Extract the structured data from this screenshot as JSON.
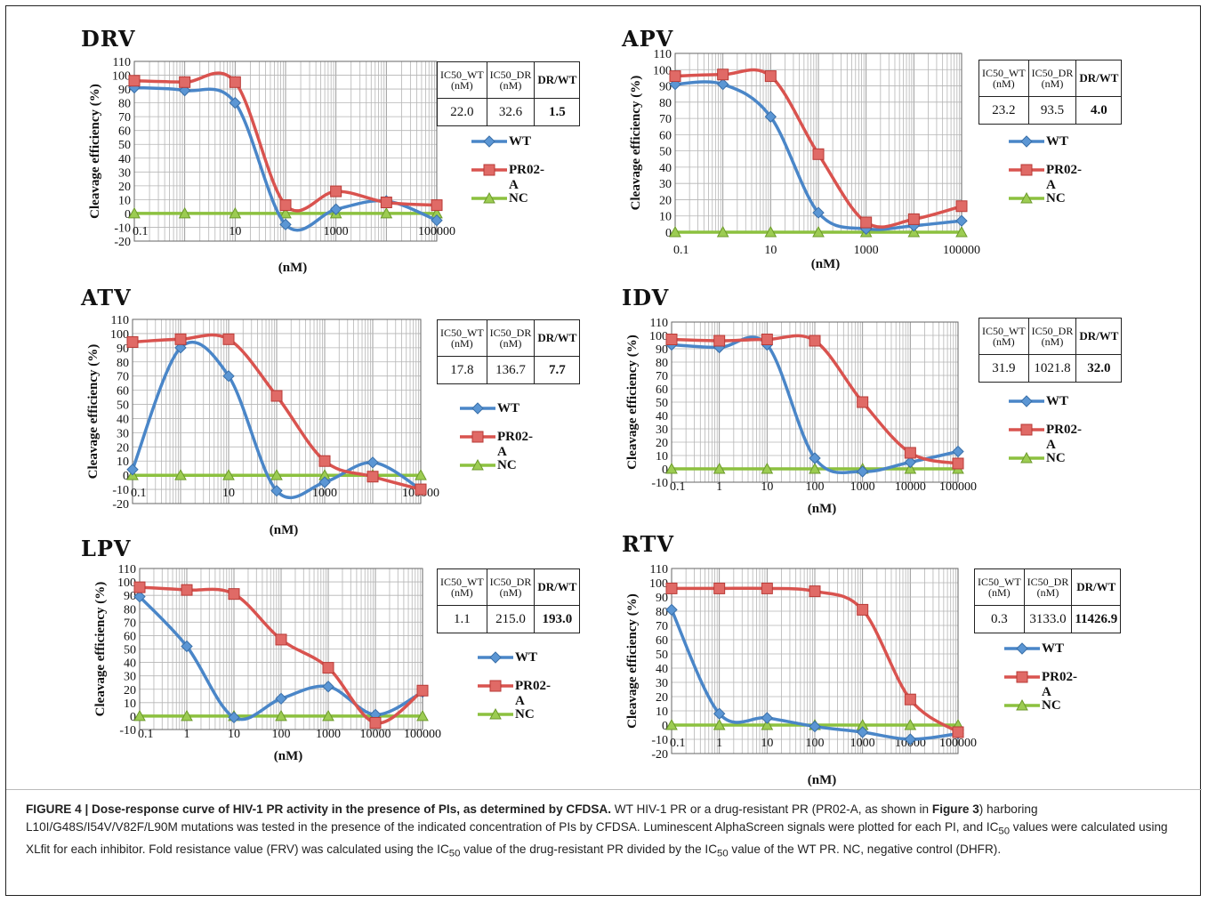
{
  "colors": {
    "wt": "#4a86c8",
    "dr": "#d9534f",
    "nc": "#8cc13f",
    "grid": "#b5b5b5",
    "axis": "#666666"
  },
  "legend": [
    "WT",
    "PR02-A",
    "NC"
  ],
  "table_headers": {
    "wt": [
      "IC50_WT",
      "(nM)"
    ],
    "dr": [
      "IC50_DR",
      "(nM)"
    ],
    "ratio": "DR/WT"
  },
  "chart_data": [
    {
      "type": "line",
      "title": "DRV",
      "xlabel": "(nM)",
      "ylabel": "Cleavage efficiency (%)",
      "x_scale": "log",
      "xlim": [
        0.1,
        100000
      ],
      "ylim": [
        -20,
        110
      ],
      "x_ticks": [
        "0.1",
        "10",
        "1000",
        "100000"
      ],
      "y_ticks": [
        "110",
        "100",
        "90",
        "80",
        "70",
        "60",
        "50",
        "40",
        "30",
        "20",
        "10",
        "0",
        "-10",
        "-20"
      ],
      "series": [
        {
          "name": "WT",
          "x": [
            0.1,
            1,
            10,
            100,
            1000,
            10000,
            100000
          ],
          "y": [
            91,
            89,
            80,
            -8,
            3,
            9,
            -5
          ]
        },
        {
          "name": "PR02-A",
          "x": [
            0.1,
            1,
            10,
            100,
            1000,
            10000,
            100000
          ],
          "y": [
            96,
            95,
            95,
            6,
            16,
            8,
            6
          ]
        },
        {
          "name": "NC",
          "x": [
            0.1,
            1,
            10,
            100,
            1000,
            10000,
            100000
          ],
          "y": [
            0,
            0,
            0,
            0,
            0,
            0,
            0
          ]
        }
      ],
      "ic50": {
        "wt": "22.0",
        "dr": "32.6",
        "ratio": "1.5"
      }
    },
    {
      "type": "line",
      "title": "APV",
      "xlabel": "(nM)",
      "ylabel": "Cleavage efficiency (%)",
      "x_scale": "log",
      "xlim": [
        0.1,
        100000
      ],
      "ylim": [
        0,
        110
      ],
      "x_ticks": [
        "0.1",
        "10",
        "1000",
        "100000"
      ],
      "y_ticks": [
        "110",
        "100",
        "90",
        "80",
        "70",
        "60",
        "50",
        "40",
        "30",
        "20",
        "10",
        "0"
      ],
      "series": [
        {
          "name": "WT",
          "x": [
            0.1,
            1,
            10,
            100,
            1000,
            10000,
            100000
          ],
          "y": [
            91,
            91,
            71,
            12,
            2,
            4,
            7
          ]
        },
        {
          "name": "PR02-A",
          "x": [
            0.1,
            1,
            10,
            100,
            1000,
            10000,
            100000
          ],
          "y": [
            96,
            97,
            96,
            48,
            6,
            8,
            16
          ]
        },
        {
          "name": "NC",
          "x": [
            0.1,
            1,
            10,
            100,
            1000,
            10000,
            100000
          ],
          "y": [
            0,
            0,
            0,
            0,
            0,
            0,
            0
          ]
        }
      ],
      "ic50": {
        "wt": "23.2",
        "dr": "93.5",
        "ratio": "4.0"
      }
    },
    {
      "type": "line",
      "title": "ATV",
      "xlabel": "(nM)",
      "ylabel": "Cleavage efficiency (%)",
      "x_scale": "log",
      "xlim": [
        0.1,
        100000
      ],
      "ylim": [
        -20,
        110
      ],
      "x_ticks": [
        "0.1",
        "10",
        "1000",
        "100000"
      ],
      "y_ticks": [
        "110",
        "100",
        "90",
        "80",
        "70",
        "60",
        "50",
        "40",
        "30",
        "20",
        "10",
        "0",
        "-10",
        "-20"
      ],
      "series": [
        {
          "name": "WT",
          "x": [
            0.1,
            1,
            10,
            100,
            1000,
            10000,
            100000
          ],
          "y": [
            4,
            90,
            70,
            -11,
            -5,
            9,
            -10
          ]
        },
        {
          "name": "PR02-A",
          "x": [
            0.1,
            1,
            10,
            100,
            1000,
            10000,
            100000
          ],
          "y": [
            94,
            96,
            96,
            56,
            10,
            -1,
            -10
          ]
        },
        {
          "name": "NC",
          "x": [
            0.1,
            1,
            10,
            100,
            1000,
            10000,
            100000
          ],
          "y": [
            0,
            0,
            0,
            0,
            0,
            0,
            0
          ]
        }
      ],
      "ic50": {
        "wt": "17.8",
        "dr": "136.7",
        "ratio": "7.7"
      }
    },
    {
      "type": "line",
      "title": "IDV",
      "xlabel": "(nM)",
      "ylabel": "Cleavage efficiency (%)",
      "x_scale": "log",
      "xlim": [
        0.1,
        100000
      ],
      "ylim": [
        -10,
        110
      ],
      "x_ticks": [
        "0.1",
        "1",
        "10",
        "100",
        "1000",
        "10000",
        "100000"
      ],
      "y_ticks": [
        "110",
        "100",
        "90",
        "80",
        "70",
        "60",
        "50",
        "40",
        "30",
        "20",
        "10",
        "0",
        "-10"
      ],
      "series": [
        {
          "name": "WT",
          "x": [
            0.1,
            1,
            10,
            100,
            1000,
            10000,
            100000
          ],
          "y": [
            93,
            91,
            93,
            8,
            -2,
            5,
            13
          ]
        },
        {
          "name": "PR02-A",
          "x": [
            0.1,
            1,
            10,
            100,
            1000,
            10000,
            100000
          ],
          "y": [
            97,
            96,
            97,
            96,
            50,
            12,
            4
          ]
        },
        {
          "name": "NC",
          "x": [
            0.1,
            1,
            10,
            100,
            1000,
            10000,
            100000
          ],
          "y": [
            0,
            0,
            0,
            0,
            0,
            0,
            0
          ]
        }
      ],
      "ic50": {
        "wt": "31.9",
        "dr": "1021.8",
        "ratio": "32.0"
      }
    },
    {
      "type": "line",
      "title": "LPV",
      "xlabel": "(nM)",
      "ylabel": "Cleavage efficiency (%)",
      "x_scale": "log",
      "xlim": [
        0.1,
        100000
      ],
      "ylim": [
        -10,
        110
      ],
      "x_ticks": [
        "0.1",
        "1",
        "10",
        "100",
        "1000",
        "10000",
        "100000"
      ],
      "y_ticks": [
        "110",
        "100",
        "90",
        "80",
        "70",
        "60",
        "50",
        "40",
        "30",
        "20",
        "10",
        "0",
        "-10"
      ],
      "series": [
        {
          "name": "WT",
          "x": [
            0.1,
            1,
            10,
            100,
            1000,
            10000,
            100000
          ],
          "y": [
            89,
            52,
            -1,
            13,
            22,
            1,
            18
          ]
        },
        {
          "name": "PR02-A",
          "x": [
            0.1,
            1,
            10,
            100,
            1000,
            10000,
            100000
          ],
          "y": [
            96,
            94,
            91,
            57,
            36,
            -5,
            19
          ]
        },
        {
          "name": "NC",
          "x": [
            0.1,
            1,
            10,
            100,
            1000,
            10000,
            100000
          ],
          "y": [
            0,
            0,
            0,
            0,
            0,
            0,
            0
          ]
        }
      ],
      "ic50": {
        "wt": "1.1",
        "dr": "215.0",
        "ratio": "193.0"
      }
    },
    {
      "type": "line",
      "title": "RTV",
      "xlabel": "(nM)",
      "ylabel": "Cleavage efficiency (%)",
      "x_scale": "log",
      "xlim": [
        0.1,
        100000
      ],
      "ylim": [
        -20,
        110
      ],
      "x_ticks": [
        "0.1",
        "1",
        "10",
        "100",
        "1000",
        "10000",
        "100000"
      ],
      "y_ticks": [
        "110",
        "100",
        "90",
        "80",
        "70",
        "60",
        "50",
        "40",
        "30",
        "20",
        "10",
        "0",
        "-10",
        "-20"
      ],
      "series": [
        {
          "name": "WT",
          "x": [
            0.1,
            1,
            10,
            100,
            1000,
            10000,
            100000
          ],
          "y": [
            81,
            8,
            5,
            -1,
            -5,
            -10,
            -6
          ]
        },
        {
          "name": "PR02-A",
          "x": [
            0.1,
            1,
            10,
            100,
            1000,
            10000,
            100000
          ],
          "y": [
            96,
            96,
            96,
            94,
            81,
            18,
            -5
          ]
        },
        {
          "name": "NC",
          "x": [
            0.1,
            1,
            10,
            100,
            1000,
            10000,
            100000
          ],
          "y": [
            0,
            0,
            0,
            0,
            0,
            0,
            0
          ]
        }
      ],
      "ic50": {
        "wt": "0.3",
        "dr": "3133.0",
        "ratio": "11426.9"
      }
    }
  ],
  "caption": {
    "head": "FIGURE 4 | Dose-response curve of HIV-1 PR activity in the presence of PIs, as determined by CFDSA.",
    "p1": " WT HIV-1 PR or a drug-resistant PR (PR02-A, as shown in ",
    "ref": "Figure 3",
    "p2": ") harboring L10I/G48S/I54V/V82F/L90M mutations was tested in the presence of the indicated concentration of PIs by CFDSA. Luminescent AlphaScreen signals were plotted for each PI, and IC",
    "sub1": "50",
    "p3": " values were calculated using XLfit for each inhibitor. Fold resistance value (FRV) was calculated using the IC",
    "sub2": "50",
    "p4": " value of the drug-resistant PR divided by the IC",
    "sub3": "50",
    "p5": " value of the WT PR. NC, negative control (DHFR)."
  }
}
